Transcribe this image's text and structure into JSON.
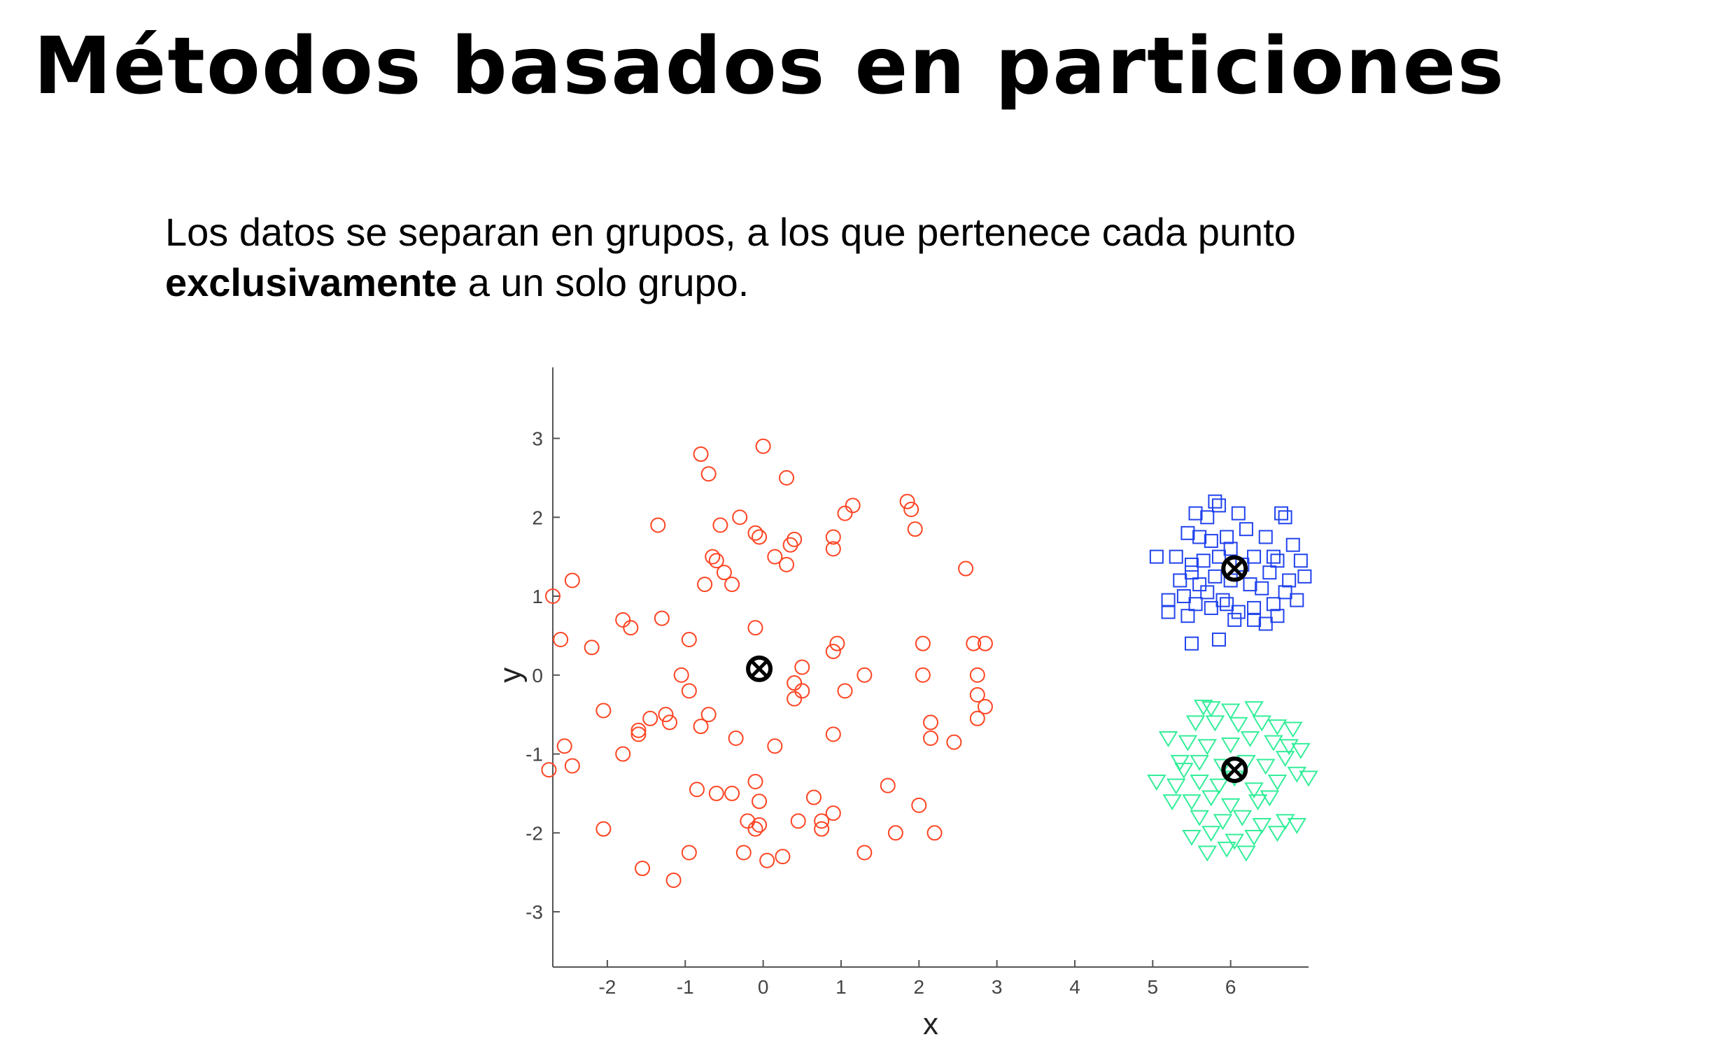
{
  "slide": {
    "title": "Métodos basados en particiones",
    "text_part1": "Los datos se separan en grupos, a los que pertenece cada punto",
    "text_bold": "exclusivamente",
    "text_part2": " a un solo grupo."
  },
  "chart_data": {
    "type": "scatter",
    "title": "",
    "xlabel": "x",
    "ylabel": "y",
    "xlim": [
      -2.7,
      7
    ],
    "ylim": [
      -3.7,
      3.9
    ],
    "xticks": [
      -2,
      -1,
      0,
      1,
      2,
      3,
      4,
      5,
      6
    ],
    "yticks": [
      3,
      2,
      1,
      0,
      -1,
      -2,
      -3
    ],
    "grid": false,
    "legend": "none",
    "series": [
      {
        "marker": "circle",
        "color": "#ff4422",
        "points": [
          [
            -0.8,
            2.8
          ],
          [
            0.0,
            2.9
          ],
          [
            -0.7,
            2.55
          ],
          [
            0.3,
            2.5
          ],
          [
            -1.35,
            1.9
          ],
          [
            -0.55,
            1.9
          ],
          [
            -0.3,
            2.0
          ],
          [
            -0.1,
            1.8
          ],
          [
            -0.05,
            1.75
          ],
          [
            0.35,
            1.65
          ],
          [
            0.4,
            1.72
          ],
          [
            1.15,
            2.15
          ],
          [
            1.05,
            2.05
          ],
          [
            1.85,
            2.2
          ],
          [
            1.9,
            2.1
          ],
          [
            1.95,
            1.85
          ],
          [
            0.9,
            1.75
          ],
          [
            0.9,
            1.6
          ],
          [
            -0.65,
            1.5
          ],
          [
            -0.6,
            1.45
          ],
          [
            -0.5,
            1.3
          ],
          [
            -0.4,
            1.15
          ],
          [
            -0.75,
            1.15
          ],
          [
            0.15,
            1.5
          ],
          [
            0.3,
            1.4
          ],
          [
            -2.45,
            1.2
          ],
          [
            -2.7,
            1.0
          ],
          [
            -1.8,
            0.7
          ],
          [
            -1.7,
            0.6
          ],
          [
            -1.3,
            0.72
          ],
          [
            -2.6,
            0.45
          ],
          [
            -2.2,
            0.35
          ],
          [
            -0.95,
            0.45
          ],
          [
            -0.1,
            0.6
          ],
          [
            -1.05,
            0.0
          ],
          [
            -0.95,
            -0.2
          ],
          [
            0.4,
            -0.1
          ],
          [
            0.5,
            -0.2
          ],
          [
            0.5,
            0.1
          ],
          [
            0.4,
            -0.3
          ],
          [
            0.9,
            0.3
          ],
          [
            0.95,
            0.4
          ],
          [
            1.3,
            0.0
          ],
          [
            2.6,
            1.35
          ],
          [
            2.05,
            0.4
          ],
          [
            2.7,
            0.4
          ],
          [
            2.85,
            0.4
          ],
          [
            2.05,
            0.0
          ],
          [
            2.75,
            0.0
          ],
          [
            1.05,
            -0.2
          ],
          [
            2.75,
            -0.25
          ],
          [
            2.85,
            -0.4
          ],
          [
            2.15,
            -0.6
          ],
          [
            2.75,
            -0.55
          ],
          [
            2.15,
            -0.8
          ],
          [
            2.45,
            -0.85
          ],
          [
            -2.05,
            -0.45
          ],
          [
            -1.45,
            -0.55
          ],
          [
            -1.25,
            -0.5
          ],
          [
            -1.2,
            -0.6
          ],
          [
            -0.7,
            -0.5
          ],
          [
            -1.6,
            -0.75
          ],
          [
            -1.6,
            -0.7
          ],
          [
            -0.8,
            -0.65
          ],
          [
            -0.35,
            -0.8
          ],
          [
            0.15,
            -0.9
          ],
          [
            0.9,
            -0.75
          ],
          [
            -2.55,
            -0.9
          ],
          [
            -2.75,
            -1.2
          ],
          [
            -2.45,
            -1.15
          ],
          [
            -1.8,
            -1.0
          ],
          [
            -0.1,
            -1.35
          ],
          [
            -0.85,
            -1.45
          ],
          [
            -0.6,
            -1.5
          ],
          [
            -0.4,
            -1.5
          ],
          [
            -0.05,
            -1.6
          ],
          [
            0.65,
            -1.55
          ],
          [
            1.6,
            -1.4
          ],
          [
            2.0,
            -1.65
          ],
          [
            -2.05,
            -1.95
          ],
          [
            -0.2,
            -1.85
          ],
          [
            -0.1,
            -1.95
          ],
          [
            -0.05,
            -1.9
          ],
          [
            0.45,
            -1.85
          ],
          [
            0.75,
            -1.85
          ],
          [
            0.75,
            -1.95
          ],
          [
            0.9,
            -1.75
          ],
          [
            1.7,
            -2.0
          ],
          [
            2.2,
            -2.0
          ],
          [
            -0.25,
            -2.25
          ],
          [
            0.05,
            -2.35
          ],
          [
            0.25,
            -2.3
          ],
          [
            1.3,
            -2.25
          ],
          [
            -1.55,
            -2.45
          ],
          [
            -1.15,
            -2.6
          ],
          [
            -0.95,
            -2.25
          ]
        ]
      },
      {
        "marker": "square",
        "color": "#2244ee",
        "points": [
          [
            5.8,
            2.2
          ],
          [
            5.85,
            2.15
          ],
          [
            5.55,
            2.05
          ],
          [
            5.7,
            2.0
          ],
          [
            6.1,
            2.05
          ],
          [
            6.65,
            2.05
          ],
          [
            6.7,
            2.0
          ],
          [
            5.45,
            1.8
          ],
          [
            5.6,
            1.75
          ],
          [
            5.75,
            1.7
          ],
          [
            5.95,
            1.75
          ],
          [
            6.2,
            1.85
          ],
          [
            6.45,
            1.75
          ],
          [
            6.8,
            1.65
          ],
          [
            5.05,
            1.5
          ],
          [
            5.3,
            1.5
          ],
          [
            5.5,
            1.4
          ],
          [
            5.65,
            1.45
          ],
          [
            5.85,
            1.5
          ],
          [
            6.3,
            1.5
          ],
          [
            6.6,
            1.45
          ],
          [
            6.9,
            1.45
          ],
          [
            5.35,
            1.2
          ],
          [
            5.5,
            1.3
          ],
          [
            5.6,
            1.15
          ],
          [
            5.8,
            1.25
          ],
          [
            6.0,
            1.2
          ],
          [
            6.25,
            1.15
          ],
          [
            6.5,
            1.3
          ],
          [
            6.75,
            1.2
          ],
          [
            6.95,
            1.25
          ],
          [
            5.2,
            0.95
          ],
          [
            5.4,
            1.0
          ],
          [
            5.55,
            0.9
          ],
          [
            5.75,
            0.85
          ],
          [
            5.9,
            0.95
          ],
          [
            6.1,
            0.8
          ],
          [
            6.3,
            0.85
          ],
          [
            6.55,
            0.9
          ],
          [
            6.7,
            1.05
          ],
          [
            6.85,
            0.95
          ],
          [
            5.2,
            0.8
          ],
          [
            5.45,
            0.75
          ],
          [
            6.05,
            0.7
          ],
          [
            6.3,
            0.7
          ],
          [
            6.45,
            0.65
          ],
          [
            6.6,
            0.75
          ],
          [
            5.5,
            0.4
          ],
          [
            5.85,
            0.45
          ],
          [
            6.0,
            1.6
          ],
          [
            6.4,
            1.1
          ],
          [
            5.7,
            1.05
          ],
          [
            6.15,
            1.4
          ],
          [
            5.95,
            0.9
          ],
          [
            6.55,
            1.5
          ]
        ]
      },
      {
        "marker": "triangle-down",
        "color": "#33ee99",
        "points": [
          [
            5.65,
            -0.4
          ],
          [
            5.75,
            -0.42
          ],
          [
            6.0,
            -0.45
          ],
          [
            6.3,
            -0.42
          ],
          [
            5.55,
            -0.6
          ],
          [
            5.8,
            -0.6
          ],
          [
            6.1,
            -0.62
          ],
          [
            6.4,
            -0.6
          ],
          [
            6.6,
            -0.65
          ],
          [
            6.8,
            -0.68
          ],
          [
            5.2,
            -0.8
          ],
          [
            5.45,
            -0.85
          ],
          [
            5.7,
            -0.9
          ],
          [
            6.0,
            -0.88
          ],
          [
            6.25,
            -0.8
          ],
          [
            6.55,
            -0.85
          ],
          [
            6.75,
            -0.9
          ],
          [
            6.9,
            -0.95
          ],
          [
            5.35,
            -1.1
          ],
          [
            5.6,
            -1.1
          ],
          [
            5.9,
            -1.15
          ],
          [
            6.2,
            -1.1
          ],
          [
            6.45,
            -1.15
          ],
          [
            6.7,
            -1.05
          ],
          [
            5.05,
            -1.35
          ],
          [
            5.3,
            -1.4
          ],
          [
            5.6,
            -1.35
          ],
          [
            5.85,
            -1.4
          ],
          [
            6.3,
            -1.45
          ],
          [
            6.6,
            -1.35
          ],
          [
            6.85,
            -1.25
          ],
          [
            7.0,
            -1.3
          ],
          [
            5.25,
            -1.6
          ],
          [
            5.5,
            -1.6
          ],
          [
            5.75,
            -1.55
          ],
          [
            6.0,
            -1.65
          ],
          [
            6.35,
            -1.6
          ],
          [
            6.5,
            -1.55
          ],
          [
            5.6,
            -1.8
          ],
          [
            5.9,
            -1.85
          ],
          [
            6.15,
            -1.8
          ],
          [
            6.4,
            -1.9
          ],
          [
            6.7,
            -1.85
          ],
          [
            6.85,
            -1.9
          ],
          [
            5.5,
            -2.05
          ],
          [
            5.75,
            -2.0
          ],
          [
            6.05,
            -2.1
          ],
          [
            6.3,
            -2.05
          ],
          [
            6.6,
            -2.0
          ],
          [
            5.7,
            -2.25
          ],
          [
            5.95,
            -2.2
          ],
          [
            6.2,
            -2.25
          ],
          [
            5.4,
            -1.2
          ],
          [
            6.05,
            -1.3
          ]
        ]
      }
    ],
    "centroids": [
      [
        -0.05,
        0.08
      ],
      [
        6.05,
        1.35
      ],
      [
        6.05,
        -1.2
      ]
    ]
  }
}
